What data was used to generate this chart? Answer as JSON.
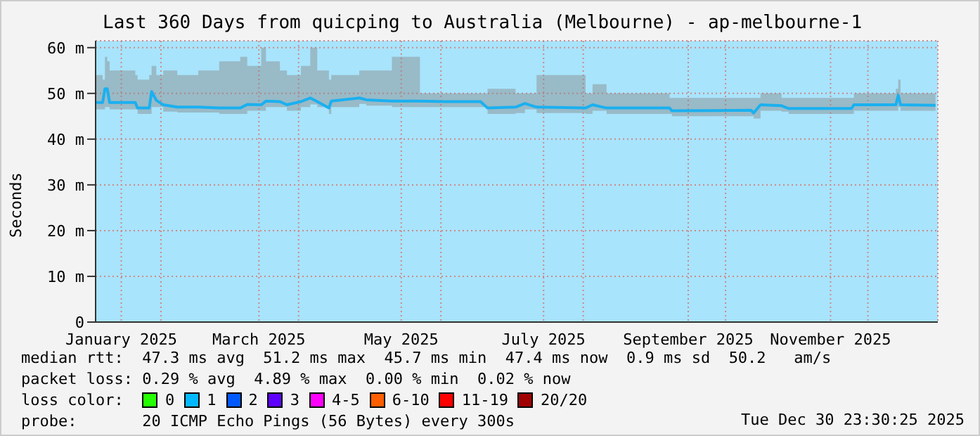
{
  "chart_data": {
    "type": "line",
    "title": "Last 360 Days from quicping to Australia (Melbourne) - ap-melbourne-1",
    "ylabel": "Seconds",
    "x": [
      "2025-01-04",
      "2025-01-07",
      "2025-01-08",
      "2025-01-09",
      "2025-01-10",
      "2025-01-21",
      "2025-01-22",
      "2025-01-27",
      "2025-01-28",
      "2025-01-30",
      "2025-02-02",
      "2025-02-08",
      "2025-02-17",
      "2025-02-26",
      "2025-03-07",
      "2025-03-10",
      "2025-03-16",
      "2025-03-18",
      "2025-03-24",
      "2025-03-27",
      "2025-04-02",
      "2025-04-06",
      "2025-04-09",
      "2025-04-14",
      "2025-04-15",
      "2025-04-27",
      "2025-04-30",
      "2025-05-11",
      "2025-05-23",
      "2025-06-03",
      "2025-06-18",
      "2025-06-21",
      "2025-07-03",
      "2025-07-07",
      "2025-07-12",
      "2025-08-02",
      "2025-08-05",
      "2025-08-11",
      "2025-09-07",
      "2025-09-08",
      "2025-10-12",
      "2025-10-13",
      "2025-10-16",
      "2025-10-25",
      "2025-10-28",
      "2025-11-24",
      "2025-11-25",
      "2025-12-13",
      "2025-12-14",
      "2025-12-15",
      "2025-12-30"
    ],
    "series": [
      {
        "color": "#1ab0f0",
        "values": [
          48,
          48,
          51,
          51,
          48,
          48,
          46.8,
          46.8,
          50.4,
          48.5,
          47.5,
          47,
          47,
          46.8,
          46.8,
          47.6,
          47.5,
          48.3,
          48.2,
          47.5,
          48.2,
          49,
          48.2,
          46.8,
          48.3,
          49,
          48.6,
          48.3,
          48.3,
          48.2,
          48.2,
          46.8,
          47,
          47.8,
          47,
          46.8,
          47.5,
          46.8,
          46.8,
          46.2,
          46.3,
          45.7,
          47.5,
          47.3,
          46.7,
          46.7,
          47.5,
          47.5,
          49.6,
          47.5,
          47.4
        ],
        "lower": [
          46.5,
          46.5,
          47,
          47,
          46.5,
          46.5,
          45.5,
          45.5,
          47,
          47,
          46,
          45.8,
          45.8,
          45.5,
          45.5,
          46.2,
          46.2,
          47,
          47,
          46.2,
          47,
          47.6,
          47,
          45.5,
          47,
          47.7,
          47.3,
          47,
          47,
          47,
          47,
          45.5,
          45.7,
          46.5,
          45.7,
          45.5,
          46.2,
          45.5,
          45.5,
          45,
          45,
          44.5,
          46.2,
          46,
          45.5,
          45.5,
          46.2,
          46.2,
          47,
          46.2,
          46.2
        ],
        "upper": [
          54,
          53,
          58,
          57,
          55,
          54,
          53,
          54,
          56,
          54,
          55,
          54,
          55,
          57,
          58,
          56,
          60,
          57,
          55,
          54,
          56,
          60,
          55,
          53,
          54,
          55,
          55,
          58,
          50,
          50,
          50,
          51,
          50,
          50,
          54,
          50,
          52,
          50,
          49,
          49,
          49,
          49,
          50,
          49,
          49,
          49,
          50,
          51,
          53,
          50,
          50
        ]
      }
    ],
    "xlim": [
      "2025-01-04",
      "2025-12-30T23:30"
    ],
    "xticks": [
      {
        "value": "2025-01-15",
        "label": "January 2025"
      },
      {
        "value": "2025-02-01",
        "label": null
      },
      {
        "value": "2025-03-15",
        "label": "March 2025"
      },
      {
        "value": "2025-04-01",
        "label": null
      },
      {
        "value": "2025-05-15",
        "label": "May 2025"
      },
      {
        "value": "2025-06-01",
        "label": null
      },
      {
        "value": "2025-07-15",
        "label": "July 2025"
      },
      {
        "value": "2025-08-01",
        "label": null
      },
      {
        "value": "2025-09-15",
        "label": "September 2025"
      },
      {
        "value": "2025-10-01",
        "label": null
      },
      {
        "value": "2025-11-15",
        "label": "November 2025"
      },
      {
        "value": "2025-12-01",
        "label": null
      }
    ],
    "ylim": [
      0,
      61.5
    ],
    "yticks": [
      {
        "value": 0,
        "label": "0"
      },
      {
        "value": 10,
        "label": "10 m"
      },
      {
        "value": 20,
        "label": "20 m"
      },
      {
        "value": 30,
        "label": "30 m"
      },
      {
        "value": 40,
        "label": "40 m"
      },
      {
        "value": 50,
        "label": "50 m"
      },
      {
        "value": 60,
        "label": "60 m"
      }
    ],
    "grid": true,
    "marker": "none",
    "line_style": "solid",
    "annotations": [
      "median rtt:  47.3 ms avg  51.2 ms max  45.7 ms min  47.4 ms now  0.9 ms sd  50.2   am/s",
      "packet loss: 0.29 % avg  4.89 % max  0.00 % min  0.02 % now",
      "loss color:",
      "0",
      "1",
      "2",
      "3",
      "4-5",
      "6-10",
      "11-19",
      "20/20",
      "probe:       20 ICMP Echo Pings (56 Bytes) every 300s",
      "Tue Dec 30 23:30:25 2025"
    ]
  }
}
